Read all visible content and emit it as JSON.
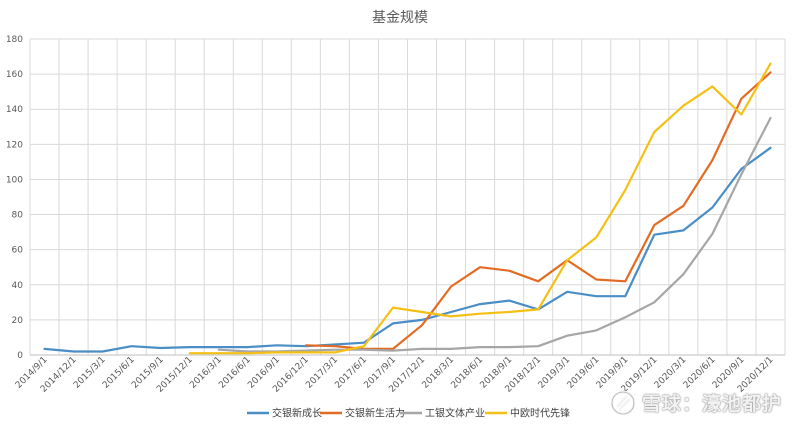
{
  "chart_data": {
    "type": "line",
    "title": "基金规模",
    "ylim": [
      0,
      180
    ],
    "yticks": [
      0,
      20,
      40,
      60,
      80,
      100,
      120,
      140,
      160,
      180
    ],
    "grid": true,
    "legend_position": "bottom",
    "categories": [
      "2014/9/1",
      "2014/12/1",
      "2015/3/1",
      "2015/6/1",
      "2015/9/1",
      "2015/12/1",
      "2016/3/1",
      "2016/6/1",
      "2016/9/1",
      "2016/12/1",
      "2017/3/1",
      "2017/6/1",
      "2017/9/1",
      "2017/12/1",
      "2018/3/1",
      "2018/6/1",
      "2018/9/1",
      "2018/12/1",
      "2019/3/1",
      "2019/6/1",
      "2019/9/1",
      "2019/12/1",
      "2020/3/1",
      "2020/6/1",
      "2020/9/1",
      "2020/12/1"
    ],
    "series": [
      {
        "name": "交银新成长",
        "color": "#4a8ec6",
        "values": [
          3.5,
          2,
          2,
          5,
          4,
          4.5,
          4.5,
          4.5,
          5.5,
          5,
          6,
          7,
          18,
          20,
          24.5,
          29,
          31,
          26,
          36,
          33.5,
          33.5,
          68.5,
          71,
          84,
          106,
          118
        ]
      },
      {
        "name": "交银新生活力",
        "color": "#e36c24",
        "values": [
          null,
          null,
          null,
          null,
          null,
          null,
          null,
          null,
          null,
          5.5,
          5,
          3.5,
          3.5,
          17,
          39,
          50,
          48,
          42,
          54,
          43,
          42,
          74,
          85,
          111,
          146,
          161
        ]
      },
      {
        "name": "工银文体产业",
        "color": "#a6a6a6",
        "values": [
          null,
          null,
          null,
          null,
          null,
          null,
          3,
          2,
          2,
          2.5,
          3,
          3,
          2.5,
          3.5,
          3.5,
          4.5,
          4.5,
          5,
          11,
          14,
          21.5,
          30,
          46,
          69,
          103,
          135
        ]
      },
      {
        "name": "中欧时代先锋",
        "color": "#f5c015",
        "values": [
          null,
          null,
          null,
          null,
          null,
          1,
          1,
          1,
          1.5,
          1.5,
          1.5,
          5,
          27,
          24.5,
          22,
          23.5,
          24.5,
          26,
          54,
          67,
          94,
          127,
          142,
          153,
          137,
          166
        ]
      }
    ]
  },
  "watermark": {
    "brand": "雪球",
    "author": "濠池都护",
    "separator": "："
  }
}
